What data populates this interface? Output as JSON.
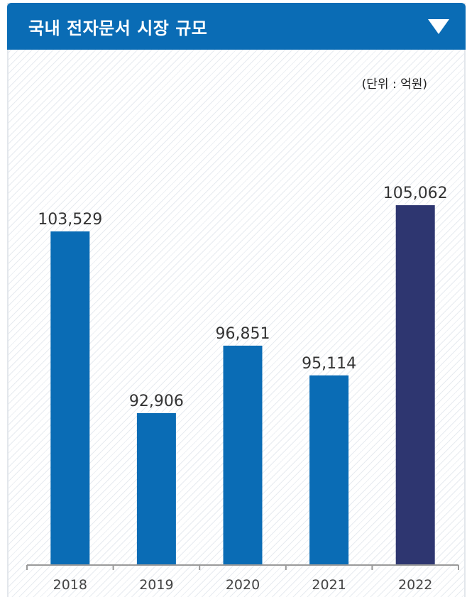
{
  "header": {
    "title": "국내 전자문서 시장 규모",
    "toggle_icon": "triangle-down-icon"
  },
  "chart_data": {
    "type": "bar",
    "title": "국내 전자문서 시장 규모",
    "unit": "(단위 : 억원)",
    "categories": [
      "2018",
      "2019",
      "2020",
      "2021",
      "2022"
    ],
    "values": [
      103529,
      92906,
      96851,
      95114,
      105062
    ],
    "value_labels": [
      "103,529",
      "92,906",
      "96,851",
      "95,114",
      "105,062"
    ],
    "colors": [
      "#0a6cb5",
      "#0a6cb5",
      "#0a6cb5",
      "#0a6cb5",
      "#2e3670"
    ],
    "grid": false,
    "legend": "none"
  }
}
